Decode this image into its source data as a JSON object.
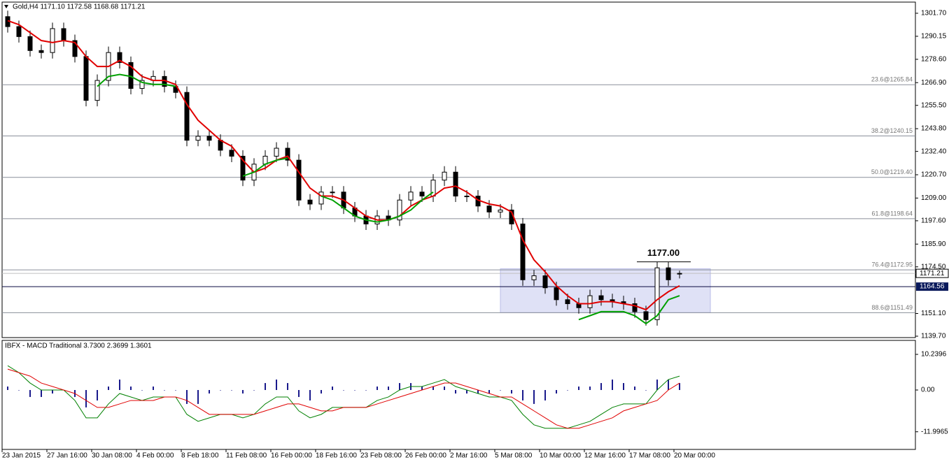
{
  "chart_data": [
    {
      "type": "candlestick",
      "title": "Gold,H4  1171.10 1172.58 1168.68 1171.21",
      "categories": [
        "23 Jan 2015",
        null,
        null,
        null,
        "27 Jan 16:00",
        null,
        null,
        null,
        "30 Jan 08:00",
        null,
        null,
        null,
        "4 Feb 00:00",
        null,
        null,
        null,
        "8 Feb 18:00",
        null,
        null,
        null,
        "11 Feb 08:00",
        null,
        null,
        null,
        "16 Feb 00:00",
        null,
        null,
        null,
        "18 Feb 16:00",
        null,
        null,
        null,
        "23 Feb 08:00",
        null,
        null,
        null,
        "26 Feb 00:00",
        null,
        null,
        null,
        "2 Mar 16:00",
        null,
        null,
        null,
        "5 Mar 08:00",
        null,
        null,
        null,
        "10 Mar 00:00",
        null,
        null,
        null,
        "12 Mar 16:00",
        null,
        null,
        null,
        "17 Mar 08:00",
        null,
        null,
        null,
        "20 Mar 00:00"
      ],
      "open": [
        1300,
        1295,
        1290,
        1283,
        1282,
        1294,
        1288,
        1280,
        1258,
        1268,
        1282,
        1277,
        1264,
        1268,
        1270,
        1265,
        1262,
        1238,
        1240,
        1238,
        1233,
        1230,
        1218,
        1226,
        1230,
        1234,
        1228,
        1208,
        1206,
        1212,
        1212,
        1204,
        1200,
        1196,
        1200,
        1198,
        1208,
        1212,
        1210,
        1218,
        1222,
        1210,
        1210,
        1205,
        1202,
        1203,
        1196,
        1168,
        1170,
        1164,
        1158,
        1156,
        1154,
        1160,
        1158,
        1157,
        1156,
        1152,
        1148,
        1174,
        1171.1
      ],
      "high": [
        1303,
        1298,
        1293,
        1286,
        1297,
        1297,
        1291,
        1283,
        1271,
        1285,
        1285,
        1280,
        1271,
        1273,
        1273,
        1268,
        1265,
        1243,
        1243,
        1241,
        1236,
        1233,
        1229,
        1233,
        1237,
        1237,
        1231,
        1211,
        1215,
        1215,
        1215,
        1207,
        1203,
        1203,
        1203,
        1211,
        1215,
        1215,
        1221,
        1225,
        1225,
        1213,
        1213,
        1208,
        1206,
        1206,
        1199,
        1173,
        1173,
        1167,
        1161,
        1159,
        1163,
        1163,
        1161,
        1160,
        1159,
        1155,
        1177,
        1177,
        1172.58
      ],
      "low": [
        1292,
        1287,
        1280,
        1279,
        1279,
        1285,
        1277,
        1255,
        1255,
        1265,
        1274,
        1261,
        1261,
        1265,
        1262,
        1259,
        1235,
        1235,
        1235,
        1230,
        1227,
        1215,
        1215,
        1223,
        1227,
        1225,
        1205,
        1203,
        1203,
        1209,
        1201,
        1197,
        1193,
        1193,
        1195,
        1195,
        1205,
        1207,
        1207,
        1215,
        1207,
        1207,
        1202,
        1199,
        1199,
        1193,
        1165,
        1165,
        1161,
        1155,
        1153,
        1151,
        1151,
        1155,
        1154,
        1153,
        1149,
        1145,
        1145,
        1165,
        1168.68
      ],
      "close": [
        1295,
        1290,
        1283,
        1282,
        1294,
        1288,
        1280,
        1258,
        1268,
        1282,
        1277,
        1264,
        1268,
        1270,
        1265,
        1262,
        1238,
        1240,
        1238,
        1233,
        1230,
        1218,
        1226,
        1230,
        1234,
        1228,
        1208,
        1206,
        1212,
        1212,
        1204,
        1200,
        1196,
        1200,
        1198,
        1208,
        1212,
        1210,
        1218,
        1222,
        1210,
        1210,
        1205,
        1202,
        1203,
        1196,
        1168,
        1170,
        1164,
        1158,
        1156,
        1154,
        1160,
        1158,
        1157,
        1156,
        1152,
        1148,
        1174,
        1168,
        1171.21
      ],
      "lines": [
        {
          "color": "#e00000",
          "values": [
            1298,
            1296,
            1292,
            1288,
            1287,
            1288,
            1287,
            1280,
            1275,
            1275,
            1278,
            1275,
            1270,
            1268,
            1268,
            1266,
            1256,
            1248,
            1243,
            1238,
            1235,
            1228,
            1222,
            1224,
            1228,
            1230,
            1222,
            1214,
            1210,
            1210,
            1208,
            1204,
            1200,
            1198,
            1198,
            1200,
            1205,
            1208,
            1210,
            1214,
            1215,
            1212,
            1208,
            1206,
            1205,
            1202,
            1188,
            1178,
            1172,
            1165,
            1160,
            1156,
            1156,
            1157,
            1157,
            1156,
            1155,
            1153,
            1158,
            1162,
            1165
          ]
        },
        {
          "color": "#00a000",
          "values": [
            null,
            null,
            null,
            null,
            null,
            null,
            null,
            null,
            1265,
            1270,
            1271,
            1270,
            1267,
            1266,
            1266,
            1265,
            null,
            null,
            null,
            null,
            null,
            1220,
            1222,
            1226,
            1228,
            1229,
            null,
            null,
            1210,
            1208,
            1204,
            1200,
            1198,
            1197,
            1198,
            1200,
            1203,
            1208,
            1212,
            null,
            null,
            null,
            null,
            null,
            null,
            null,
            null,
            null,
            null,
            null,
            null,
            1148,
            1150,
            1152,
            1152,
            1152,
            1150,
            1146,
            1150,
            1158,
            1160
          ]
        }
      ],
      "fib_levels": [
        {
          "value": 1265.84,
          "label": "23.6@1265.84"
        },
        {
          "value": 1240.15,
          "label": "38.2@1240.15"
        },
        {
          "value": 1219.4,
          "label": "50.0@1219.40"
        },
        {
          "value": 1198.64,
          "label": "61.8@1198.64"
        },
        {
          "value": 1172.95,
          "label": "76.4@1172.95"
        },
        {
          "value": 1151.49,
          "label": "88.6@1151.49"
        }
      ],
      "hline": {
        "value": 1164.56,
        "label": "1164.56"
      },
      "annotation": {
        "value": 1177,
        "label": "1177.00"
      },
      "box": {
        "high": 1173.5,
        "low": 1151.5
      },
      "ylim": [
        1139.0,
        1307.3
      ],
      "yticks": [
        {
          "value": 1301.7,
          "label": "1301.70"
        },
        1290.15,
        {
          "value": 1278.6,
          "label": "1278.60"
        },
        {
          "value": 1266.9,
          "label": "1266.90"
        },
        {
          "value": 1255.5,
          "label": "1255.50"
        },
        {
          "value": 1243.8,
          "label": "1243.80"
        },
        {
          "value": 1232.4,
          "label": "1232.40"
        },
        {
          "value": 1220.7,
          "label": "1220.70"
        },
        {
          "value": 1209,
          "label": "1209.00"
        },
        {
          "value": 1197.6,
          "label": "1197.60"
        },
        {
          "value": 1185.9,
          "label": "1185.90"
        },
        {
          "value": 1174.5,
          "label": "1174.50"
        },
        {
          "value": 1151.1,
          "label": "1151.10"
        },
        {
          "value": 1139.7,
          "label": "1139.70"
        }
      ]
    },
    {
      "type": "macd",
      "title": "IBFX - MACD Traditional 3.7300 2.3699 1.3601",
      "histogram": [
        1,
        0,
        -2,
        -2,
        -1,
        0,
        -2,
        -5,
        -3,
        1,
        3,
        1,
        0,
        1,
        0,
        0,
        -4,
        -4,
        -1,
        0,
        0,
        -1,
        0,
        2,
        3,
        2,
        -2,
        -3,
        -1,
        1,
        0,
        0,
        0,
        1,
        1,
        2,
        2,
        1,
        1,
        1,
        -1,
        -1,
        -1,
        -1,
        0,
        -1,
        -3,
        -4,
        -3,
        -1,
        0,
        1,
        1,
        2,
        3,
        2,
        1,
        0,
        3,
        3,
        2
      ],
      "histogram_color": "#1a1a8c",
      "lines": [
        {
          "color": "#008000",
          "values": [
            7,
            5,
            2,
            0,
            0,
            0,
            -3,
            -8,
            -8,
            -4,
            -1,
            -2,
            -3,
            -2,
            -2,
            -2,
            -7,
            -9,
            -8,
            -7,
            -7,
            -8,
            -7,
            -4,
            -2,
            -2,
            -6,
            -8,
            -7,
            -5,
            -5,
            -5,
            -5,
            -3,
            -2,
            0,
            1,
            1,
            2,
            3,
            1,
            0,
            -1,
            -2,
            -2,
            -3,
            -7,
            -10,
            -11,
            -11,
            -11,
            -10,
            -9,
            -7,
            -5,
            -4,
            -4,
            -4,
            0,
            3,
            4
          ]
        },
        {
          "color": "#e00000",
          "values": [
            6,
            5,
            4,
            2,
            1,
            0,
            -1,
            -3,
            -5,
            -5,
            -4,
            -3,
            -3,
            -3,
            -2,
            -2,
            -3,
            -5,
            -7,
            -7,
            -7,
            -7,
            -7,
            -6,
            -5,
            -4,
            -4,
            -5,
            -6,
            -6,
            -5,
            -5,
            -5,
            -4,
            -3,
            -2,
            -1,
            0,
            1,
            2,
            2,
            1,
            0,
            -1,
            -2,
            -2,
            -4,
            -6,
            -8,
            -10,
            -11,
            -11,
            -10,
            -9,
            -8,
            -6,
            -5,
            -4,
            -3,
            0,
            2
          ]
        }
      ],
      "ylim": [
        -17.07,
        14.26
      ],
      "yticks": [
        {
          "value": 10.2396,
          "label": "10.2396"
        },
        {
          "value": 0,
          "label": "0.00"
        },
        {
          "value": -11.9965,
          "label": "-11.9965"
        }
      ]
    }
  ]
}
